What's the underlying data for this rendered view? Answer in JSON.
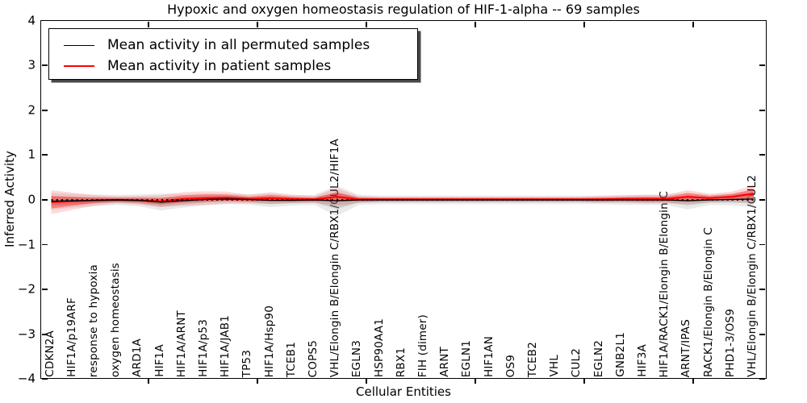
{
  "figure": {
    "title": "Hypoxic and oxygen homeostasis regulation of HIF-1-alpha -- 69 samples"
  },
  "legend": {
    "entries": [
      {
        "label": "Mean activity in all permuted samples",
        "color": "#000000"
      },
      {
        "label": "Mean activity in patient samples",
        "color": "#ff0000"
      }
    ]
  },
  "chart_data": {
    "type": "line",
    "title": "Hypoxic and oxygen homeostasis regulation of HIF-1-alpha -- 69 samples",
    "xlabel": "Cellular Entities",
    "ylabel": "Inferred Activity",
    "ylim": [
      -4,
      4
    ],
    "ytick_values": [
      4,
      3,
      2,
      1,
      0,
      -1,
      -2,
      -3,
      -4
    ],
    "ytick_labels": [
      "4",
      "3",
      "2",
      "1",
      "0",
      "−1",
      "−2",
      "−3",
      "−4"
    ],
    "grid": false,
    "legend_position": "upper left",
    "zero_line": {
      "value": 0,
      "style": "dotted",
      "color": "#000000"
    },
    "categories": [
      "CDKN2A",
      "HIF1A/p19ARF",
      "response to hypoxia",
      "oxygen homeostasis",
      "ARD1A",
      "HIF1A",
      "HIF1A/ARNT",
      "HIF1A/p53",
      "HIF1A/JAB1",
      "TP53",
      "HIF1A/Hsp90",
      "TCEB1",
      "COPS5",
      "VHL/Elongin B/Elongin C/RBX1/CUL2/HIF1A",
      "EGLN3",
      "HSP90AA1",
      "RBX1",
      "FIH (dimer)",
      "ARNT",
      "EGLN1",
      "HIF1AN",
      "OS9",
      "TCEB2",
      "VHL",
      "CUL2",
      "EGLN2",
      "GNB2L1",
      "HIF3A",
      "HIF1A/RACK1/Elongin B/Elongin C",
      "ARNT/IPAS",
      "RACK1/Elongin B/Elongin C",
      "PHD1-3/OS9",
      "VHL/Elongin B/Elongin C/RBX1/CUL2"
    ],
    "series": [
      {
        "name": "Mean activity in all permuted samples",
        "role": "mean-line",
        "color": "#000000",
        "values": [
          -0.03,
          -0.02,
          -0.01,
          0,
          -0.01,
          -0.05,
          -0.02,
          0.01,
          0.02,
          0.01,
          -0.01,
          -0.01,
          0,
          -0.02,
          0,
          0,
          0,
          0,
          0,
          0,
          0,
          0,
          0,
          0,
          0,
          0,
          0,
          0,
          0,
          -0.02,
          0,
          0.01,
          0.02
        ]
      },
      {
        "name": "Mean activity in patient samples",
        "role": "mean-line",
        "color": "#ff0000",
        "values": [
          -0.05,
          -0.03,
          -0.01,
          0,
          -0.01,
          -0.03,
          0.02,
          0.04,
          0.05,
          0.02,
          0.04,
          0.02,
          0.01,
          0.07,
          0.01,
          0.01,
          0.01,
          0.01,
          0.01,
          0.01,
          0.01,
          0.01,
          0.01,
          0.01,
          0.01,
          0.01,
          0.02,
          0.02,
          0.02,
          0.07,
          0.04,
          0.07,
          0.14
        ]
      },
      {
        "name": "Permuted samples confidence band halfwidth",
        "role": "band-halfwidth",
        "color": "#9e9e9e",
        "values": [
          0.1,
          0.08,
          0.07,
          0.06,
          0.07,
          0.1,
          0.08,
          0.07,
          0.06,
          0.06,
          0.08,
          0.06,
          0.06,
          0.18,
          0.06,
          0.05,
          0.05,
          0.05,
          0.05,
          0.05,
          0.05,
          0.05,
          0.05,
          0.05,
          0.05,
          0.05,
          0.06,
          0.06,
          0.06,
          0.1,
          0.06,
          0.07,
          0.1
        ]
      },
      {
        "name": "Patient samples confidence band halfwidth",
        "role": "band-halfwidth",
        "color": "#ff0000",
        "values": [
          0.14,
          0.1,
          0.06,
          0.04,
          0.05,
          0.07,
          0.08,
          0.08,
          0.07,
          0.05,
          0.07,
          0.05,
          0.04,
          0.1,
          0.04,
          0.03,
          0.03,
          0.03,
          0.03,
          0.03,
          0.03,
          0.03,
          0.03,
          0.03,
          0.03,
          0.04,
          0.04,
          0.05,
          0.05,
          0.08,
          0.05,
          0.06,
          0.1
        ]
      }
    ]
  }
}
